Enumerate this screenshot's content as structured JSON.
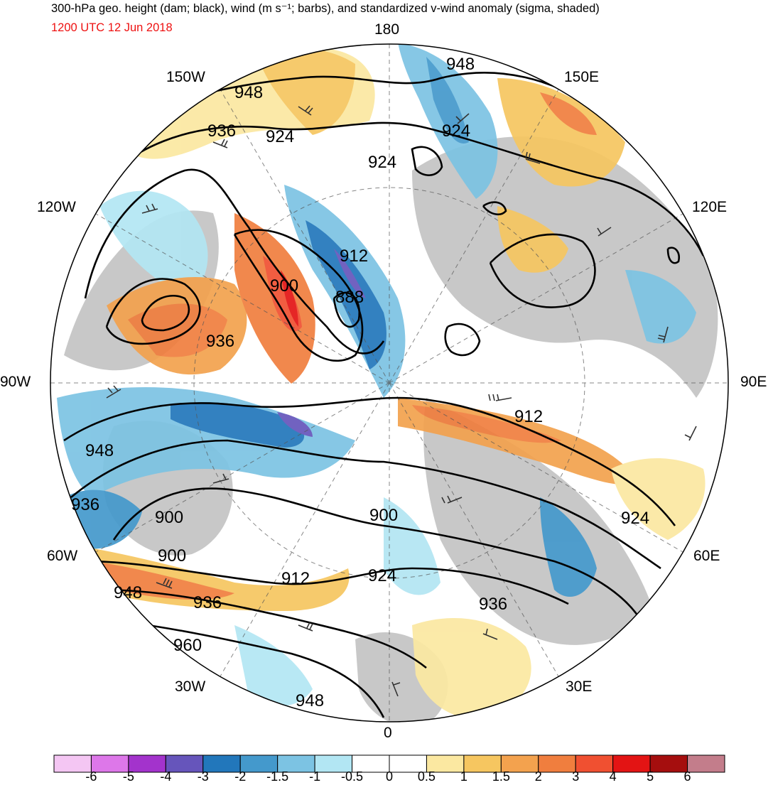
{
  "title": "300-hPa geo. height (dam; black), wind (m s⁻¹; barbs), and standardized v-wind anomaly (sigma, shaded)",
  "subtitle": "1200 UTC 12 Jun 2018",
  "subtitle_color": "#ee1111",
  "longitude_labels": {
    "top": "180",
    "bottom": "0",
    "left": "90W",
    "right": "90E",
    "nw150": "150W",
    "ne150": "150E",
    "nw120": "120W",
    "ne120": "120E",
    "sw60": "60W",
    "se60": "60E",
    "sw30": "30W",
    "se30": "30E"
  },
  "contour_labels": {
    "c1": "948",
    "c2": "948",
    "c3": "936",
    "c4": "924",
    "c5": "924",
    "c6": "924",
    "c7": "912",
    "c8": "900",
    "c9": "888",
    "c10": "936",
    "c11": "912",
    "c12": "948",
    "c13": "936",
    "c14": "900",
    "c15": "900",
    "c16": "924",
    "c17": "900",
    "c18": "912",
    "c19": "924",
    "c20": "948",
    "c21": "936",
    "c22": "936",
    "c23": "960",
    "c24": "948"
  },
  "colorbar": {
    "labels": [
      "-6",
      "-5",
      "-4",
      "-3",
      "-2",
      "-1.5",
      "-1",
      "-0.5",
      "0",
      "0.5",
      "1",
      "1.5",
      "2",
      "3",
      "4",
      "5",
      "6"
    ],
    "colors": [
      "#f4c6f3",
      "#dd77e9",
      "#a333cc",
      "#6655bb",
      "#2277bb",
      "#4499cc",
      "#7cc3e3",
      "#b2e6f3",
      "#ffffff",
      "#ffffff",
      "#fbe8a1",
      "#f6c660",
      "#f3a24e",
      "#f07e3e",
      "#f05031",
      "#e31414",
      "#a50e0e",
      "#c37d8b"
    ]
  },
  "land_color": "#c8c8c8",
  "contour_color": "#000000"
}
